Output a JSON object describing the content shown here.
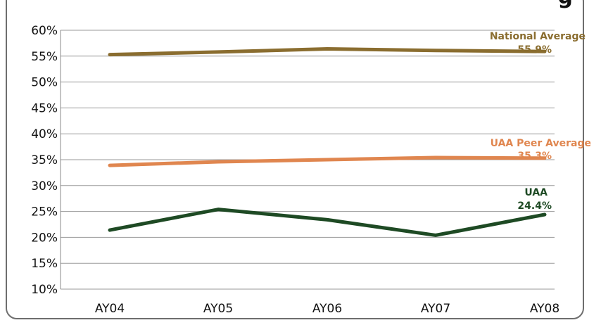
{
  "chart_data": {
    "type": "line",
    "title_fragment": "g",
    "categories": [
      "AY04",
      "AY05",
      "AY06",
      "AY07",
      "AY08"
    ],
    "ylim": [
      10,
      60
    ],
    "yticks": [
      "10%",
      "15%",
      "20%",
      "25%",
      "30%",
      "35%",
      "40%",
      "45%",
      "50%",
      "55%",
      "60%"
    ],
    "grid": true,
    "series": [
      {
        "name": "National Average",
        "end_label": "55.9%",
        "color": "#8a6d2f",
        "values": [
          55.3,
          55.8,
          56.4,
          56.1,
          55.9
        ]
      },
      {
        "name": "UAA Peer Average",
        "end_label": "35.3%",
        "color": "#e0864f",
        "values": [
          33.9,
          34.6,
          35.0,
          35.4,
          35.3
        ]
      },
      {
        "name": "UAA",
        "end_label": "24.4%",
        "color": "#1e4a24",
        "values": [
          21.4,
          25.4,
          23.4,
          20.4,
          24.4
        ]
      }
    ]
  }
}
